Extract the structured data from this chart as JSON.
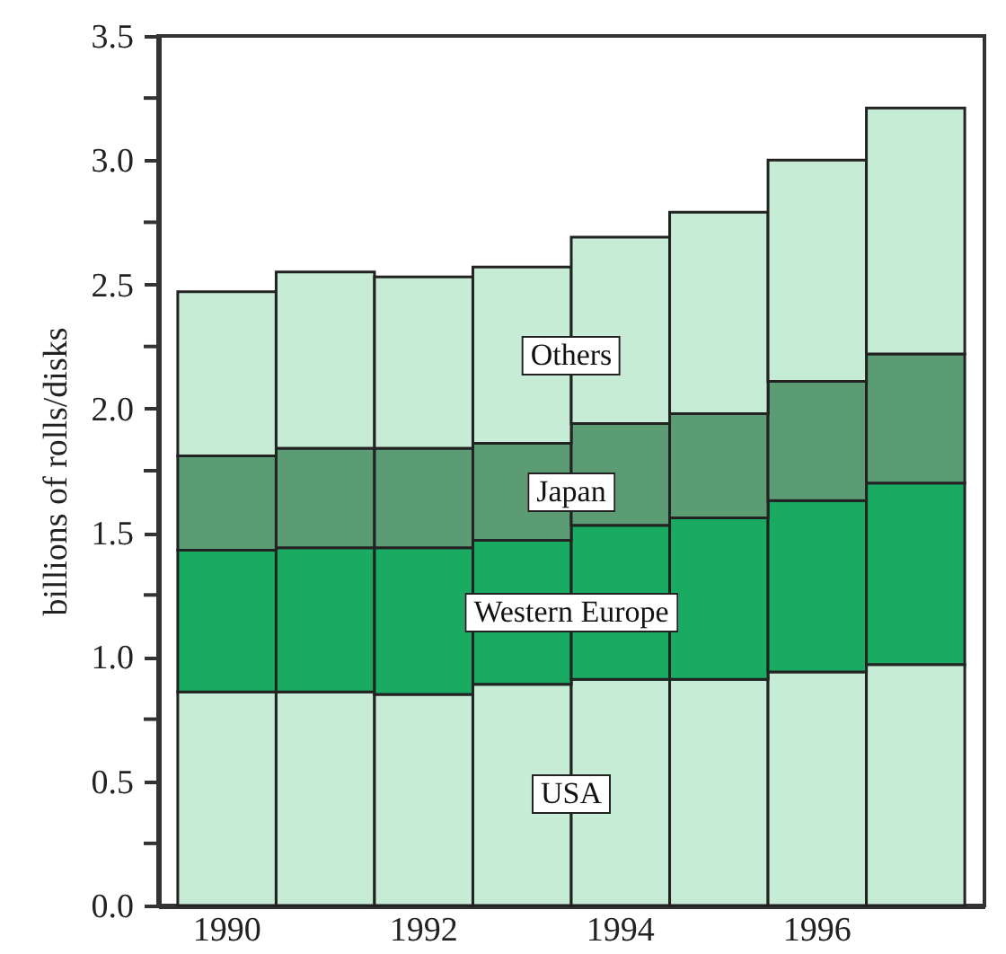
{
  "chart_data": {
    "type": "bar",
    "stacked": true,
    "ylabel": "billions of rolls/disks",
    "categories": [
      "1990",
      null,
      "1992",
      null,
      "1994",
      null,
      "1996",
      null
    ],
    "series": [
      {
        "name": "USA",
        "color": "#c6ecd6",
        "values": [
          0.86,
          0.86,
          0.85,
          0.89,
          0.91,
          0.91,
          0.94,
          0.97
        ]
      },
      {
        "name": "Western Europe",
        "color": "#1aab62",
        "values": [
          0.57,
          0.58,
          0.59,
          0.58,
          0.62,
          0.65,
          0.69,
          0.73
        ]
      },
      {
        "name": "Japan",
        "color": "#5c9c74",
        "values": [
          0.38,
          0.4,
          0.4,
          0.39,
          0.41,
          0.42,
          0.48,
          0.52
        ]
      },
      {
        "name": "Others",
        "color": "#c6ecd6",
        "values": [
          0.66,
          0.71,
          0.69,
          0.71,
          0.75,
          0.81,
          0.89,
          0.99
        ]
      }
    ],
    "ylim": [
      0,
      3.5
    ],
    "yticks": [
      {
        "value": 0,
        "label": "0.0"
      },
      {
        "value": 0.25,
        "label": null
      },
      {
        "value": 0.5,
        "label": "0.5"
      },
      {
        "value": 0.75,
        "label": null
      },
      {
        "value": 1,
        "label": "1.0"
      },
      {
        "value": 1.25,
        "label": null
      },
      {
        "value": 1.5,
        "label": "1.5"
      },
      {
        "value": 1.75,
        "label": null
      },
      {
        "value": 2,
        "label": "2.0"
      },
      {
        "value": 2.25,
        "label": null
      },
      {
        "value": 2.5,
        "label": "2.5"
      },
      {
        "value": 2.75,
        "label": null
      },
      {
        "value": 3,
        "label": "3.0"
      },
      {
        "value": 3.25,
        "label": null
      },
      {
        "value": 3.5,
        "label": "3.5"
      }
    ],
    "grid": false
  }
}
